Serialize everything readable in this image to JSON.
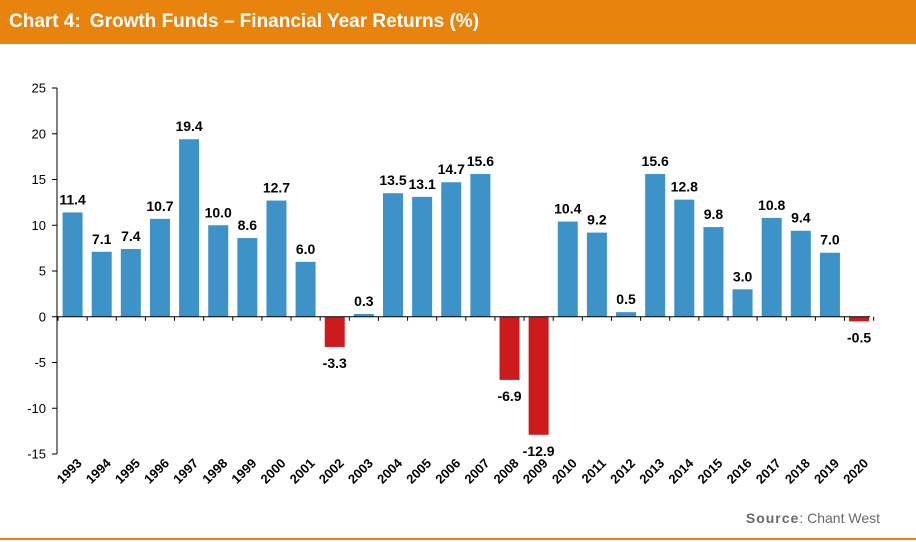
{
  "header": {
    "chart_label": "Chart 4:",
    "title": "Growth Funds – Financial Year Returns (%)"
  },
  "source": {
    "label": "Source",
    "text": ": Chant West"
  },
  "colors": {
    "header_bg": "#e8830e",
    "positive_bar": "#3d93c8",
    "negative_bar": "#cc1a1d"
  },
  "chart_data": {
    "type": "bar",
    "categories": [
      "1993",
      "1994",
      "1995",
      "1996",
      "1997",
      "1998",
      "1999",
      "2000",
      "2001",
      "2002",
      "2003",
      "2004",
      "2005",
      "2006",
      "2007",
      "2008",
      "2009",
      "2010",
      "2011",
      "2012",
      "2013",
      "2014",
      "2015",
      "2016",
      "2017",
      "2018",
      "2019",
      "2020"
    ],
    "values": [
      11.4,
      7.1,
      7.4,
      10.7,
      19.4,
      10.0,
      8.6,
      12.7,
      6.0,
      -3.3,
      0.3,
      13.5,
      13.1,
      14.7,
      15.6,
      -6.9,
      -12.9,
      10.4,
      9.2,
      0.5,
      15.6,
      12.8,
      9.8,
      3.0,
      10.8,
      9.4,
      7.0,
      -0.5
    ],
    "labels": [
      "11.4",
      "7.1",
      "7.4",
      "10.7",
      "19.4",
      "10.0",
      "8.6",
      "12.7",
      "6.0",
      "-3.3",
      "0.3",
      "13.5",
      "13.1",
      "14.7",
      "15.6",
      "-6.9",
      "-12.9",
      "10.4",
      "9.2",
      "0.5",
      "15.6",
      "12.8",
      "9.8",
      "3.0",
      "10.8",
      "9.4",
      "7.0",
      "-0.5"
    ],
    "ylim": [
      -15,
      25
    ],
    "yticks": [
      25,
      20,
      15,
      10,
      5,
      0,
      -5,
      -10,
      -15
    ],
    "ytick_labels": [
      "25",
      "20",
      "15",
      "10",
      "5",
      "0",
      "-5",
      "-10",
      "-15"
    ],
    "xlabel": "",
    "ylabel": "",
    "grid": false,
    "legend": "none"
  }
}
